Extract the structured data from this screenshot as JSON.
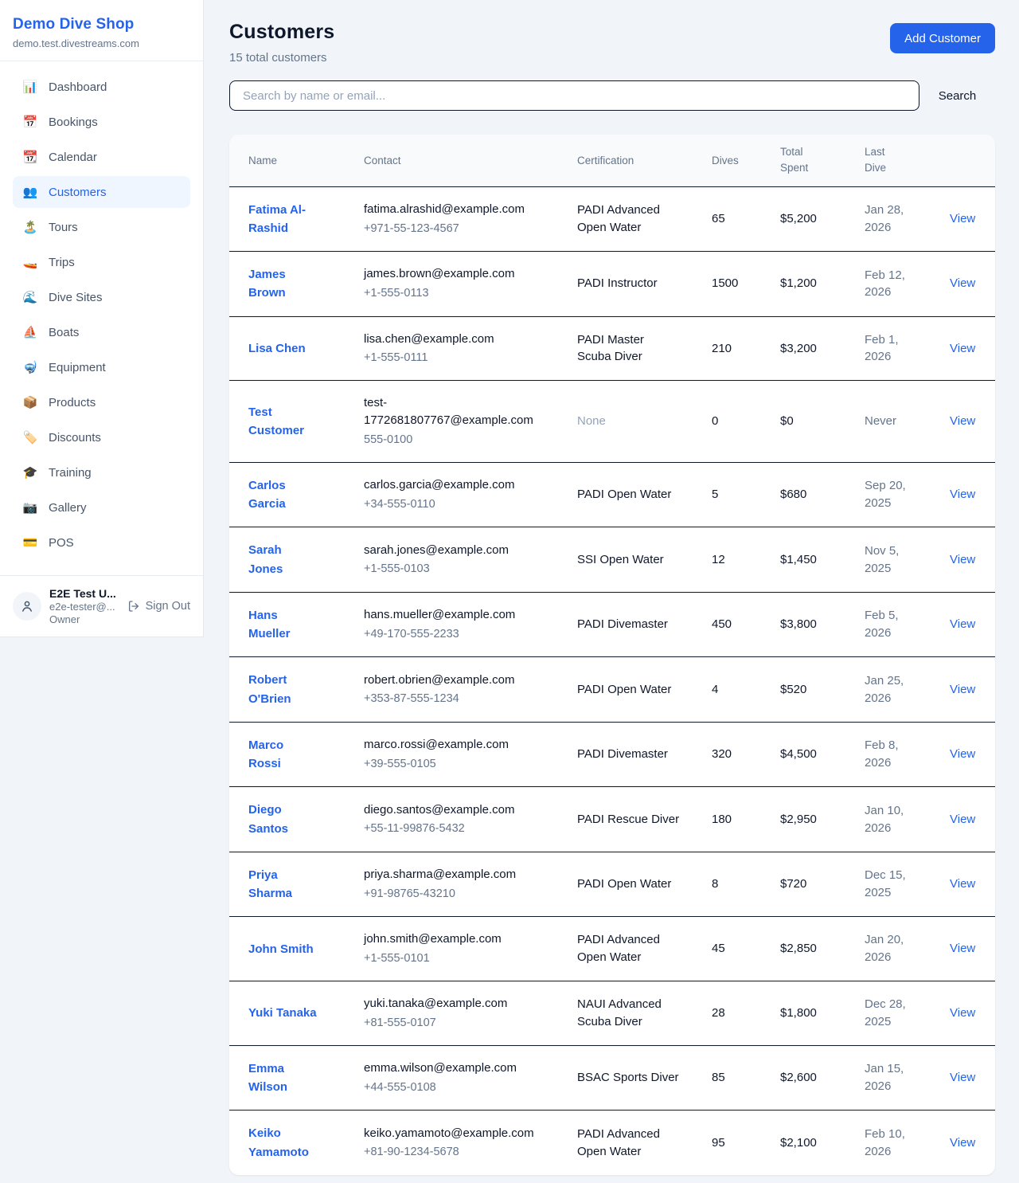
{
  "colors": {
    "accent": "#2563eb",
    "active_nav_bg": "#eff6ff",
    "text_primary": "#0f172a",
    "text_muted": "#64748b",
    "text_faint": "#94a3b8",
    "table_border": "#0f172a",
    "page_bg": "#f1f5f9",
    "card_bg": "#ffffff"
  },
  "sidebar": {
    "title": "Demo Dive Shop",
    "subtitle": "demo.test.divestreams.com",
    "items": [
      {
        "icon": "📊",
        "icon_name": "bar-chart-icon",
        "label": "Dashboard",
        "active": false
      },
      {
        "icon": "📅",
        "icon_name": "calendar-date-icon",
        "label": "Bookings",
        "active": false
      },
      {
        "icon": "📆",
        "icon_name": "tear-off-calendar-icon",
        "label": "Calendar",
        "active": false
      },
      {
        "icon": "👥",
        "icon_name": "people-icon",
        "label": "Customers",
        "active": true
      },
      {
        "icon": "🏝️",
        "icon_name": "island-icon",
        "label": "Tours",
        "active": false
      },
      {
        "icon": "🚤",
        "icon_name": "speedboat-icon",
        "label": "Trips",
        "active": false
      },
      {
        "icon": "🌊",
        "icon_name": "wave-icon",
        "label": "Dive Sites",
        "active": false
      },
      {
        "icon": "⛵",
        "icon_name": "sailboat-icon",
        "label": "Boats",
        "active": false
      },
      {
        "icon": "🤿",
        "icon_name": "diving-mask-icon",
        "label": "Equipment",
        "active": false
      },
      {
        "icon": "📦",
        "icon_name": "package-icon",
        "label": "Products",
        "active": false
      },
      {
        "icon": "🏷️",
        "icon_name": "tag-icon",
        "label": "Discounts",
        "active": false
      },
      {
        "icon": "🎓",
        "icon_name": "graduation-cap-icon",
        "label": "Training",
        "active": false
      },
      {
        "icon": "📷",
        "icon_name": "camera-icon",
        "label": "Gallery",
        "active": false
      },
      {
        "icon": "💳",
        "icon_name": "credit-card-icon",
        "label": "POS",
        "active": false
      }
    ],
    "user": {
      "name": "E2E Test U...",
      "email": "e2e-tester@...",
      "role": "Owner",
      "sign_out_label": "Sign Out"
    }
  },
  "header": {
    "title": "Customers",
    "subtitle": "15 total customers",
    "add_button_label": "Add Customer"
  },
  "search": {
    "placeholder": "Search by name or email...",
    "button_label": "Search"
  },
  "table": {
    "columns": [
      {
        "label": "Name",
        "narrow": false
      },
      {
        "label": "Contact",
        "narrow": false
      },
      {
        "label": "Certification",
        "narrow": false
      },
      {
        "label": "Dives",
        "narrow": false
      },
      {
        "label": "Total Spent",
        "narrow": true
      },
      {
        "label": "Last Dive",
        "narrow": true
      },
      {
        "label": "",
        "narrow": false
      }
    ],
    "rows": [
      {
        "name": "Fatima Al-Rashid",
        "email": "fatima.alrashid@example.com",
        "phone": "+971-55-123-4567",
        "certification": "PADI Advanced Open Water",
        "dives": "65",
        "total_spent": "$5,200",
        "last_dive": "Jan 28, 2026",
        "action": "View"
      },
      {
        "name": "James Brown",
        "email": "james.brown@example.com",
        "phone": "+1-555-0113",
        "certification": "PADI Instructor",
        "dives": "1500",
        "total_spent": "$1,200",
        "last_dive": "Feb 12, 2026",
        "action": "View"
      },
      {
        "name": "Lisa Chen",
        "email": "lisa.chen@example.com",
        "phone": "+1-555-0111",
        "certification": "PADI Master Scuba Diver",
        "dives": "210",
        "total_spent": "$3,200",
        "last_dive": "Feb 1, 2026",
        "action": "View"
      },
      {
        "name": "Test Customer",
        "email": "test-1772681807767@example.com",
        "phone": "555-0100",
        "certification": "None",
        "dives": "0",
        "total_spent": "$0",
        "last_dive": "Never",
        "action": "View"
      },
      {
        "name": "Carlos Garcia",
        "email": "carlos.garcia@example.com",
        "phone": "+34-555-0110",
        "certification": "PADI Open Water",
        "dives": "5",
        "total_spent": "$680",
        "last_dive": "Sep 20, 2025",
        "action": "View"
      },
      {
        "name": "Sarah Jones",
        "email": "sarah.jones@example.com",
        "phone": "+1-555-0103",
        "certification": "SSI Open Water",
        "dives": "12",
        "total_spent": "$1,450",
        "last_dive": "Nov 5, 2025",
        "action": "View"
      },
      {
        "name": "Hans Mueller",
        "email": "hans.mueller@example.com",
        "phone": "+49-170-555-2233",
        "certification": "PADI Divemaster",
        "dives": "450",
        "total_spent": "$3,800",
        "last_dive": "Feb 5, 2026",
        "action": "View"
      },
      {
        "name": "Robert O'Brien",
        "email": "robert.obrien@example.com",
        "phone": "+353-87-555-1234",
        "certification": "PADI Open Water",
        "dives": "4",
        "total_spent": "$520",
        "last_dive": "Jan 25, 2026",
        "action": "View"
      },
      {
        "name": "Marco Rossi",
        "email": "marco.rossi@example.com",
        "phone": "+39-555-0105",
        "certification": "PADI Divemaster",
        "dives": "320",
        "total_spent": "$4,500",
        "last_dive": "Feb 8, 2026",
        "action": "View"
      },
      {
        "name": "Diego Santos",
        "email": "diego.santos@example.com",
        "phone": "+55-11-99876-5432",
        "certification": "PADI Rescue Diver",
        "dives": "180",
        "total_spent": "$2,950",
        "last_dive": "Jan 10, 2026",
        "action": "View"
      },
      {
        "name": "Priya Sharma",
        "email": "priya.sharma@example.com",
        "phone": "+91-98765-43210",
        "certification": "PADI Open Water",
        "dives": "8",
        "total_spent": "$720",
        "last_dive": "Dec 15, 2025",
        "action": "View"
      },
      {
        "name": "John Smith",
        "email": "john.smith@example.com",
        "phone": "+1-555-0101",
        "certification": "PADI Advanced Open Water",
        "dives": "45",
        "total_spent": "$2,850",
        "last_dive": "Jan 20, 2026",
        "action": "View"
      },
      {
        "name": "Yuki Tanaka",
        "email": "yuki.tanaka@example.com",
        "phone": "+81-555-0107",
        "certification": "NAUI Advanced Scuba Diver",
        "dives": "28",
        "total_spent": "$1,800",
        "last_dive": "Dec 28, 2025",
        "action": "View"
      },
      {
        "name": "Emma Wilson",
        "email": "emma.wilson@example.com",
        "phone": "+44-555-0108",
        "certification": "BSAC Sports Diver",
        "dives": "85",
        "total_spent": "$2,600",
        "last_dive": "Jan 15, 2026",
        "action": "View"
      },
      {
        "name": "Keiko Yamamoto",
        "email": "keiko.yamamoto@example.com",
        "phone": "+81-90-1234-5678",
        "certification": "PADI Advanced Open Water",
        "dives": "95",
        "total_spent": "$2,100",
        "last_dive": "Feb 10, 2026",
        "action": "View"
      }
    ]
  }
}
